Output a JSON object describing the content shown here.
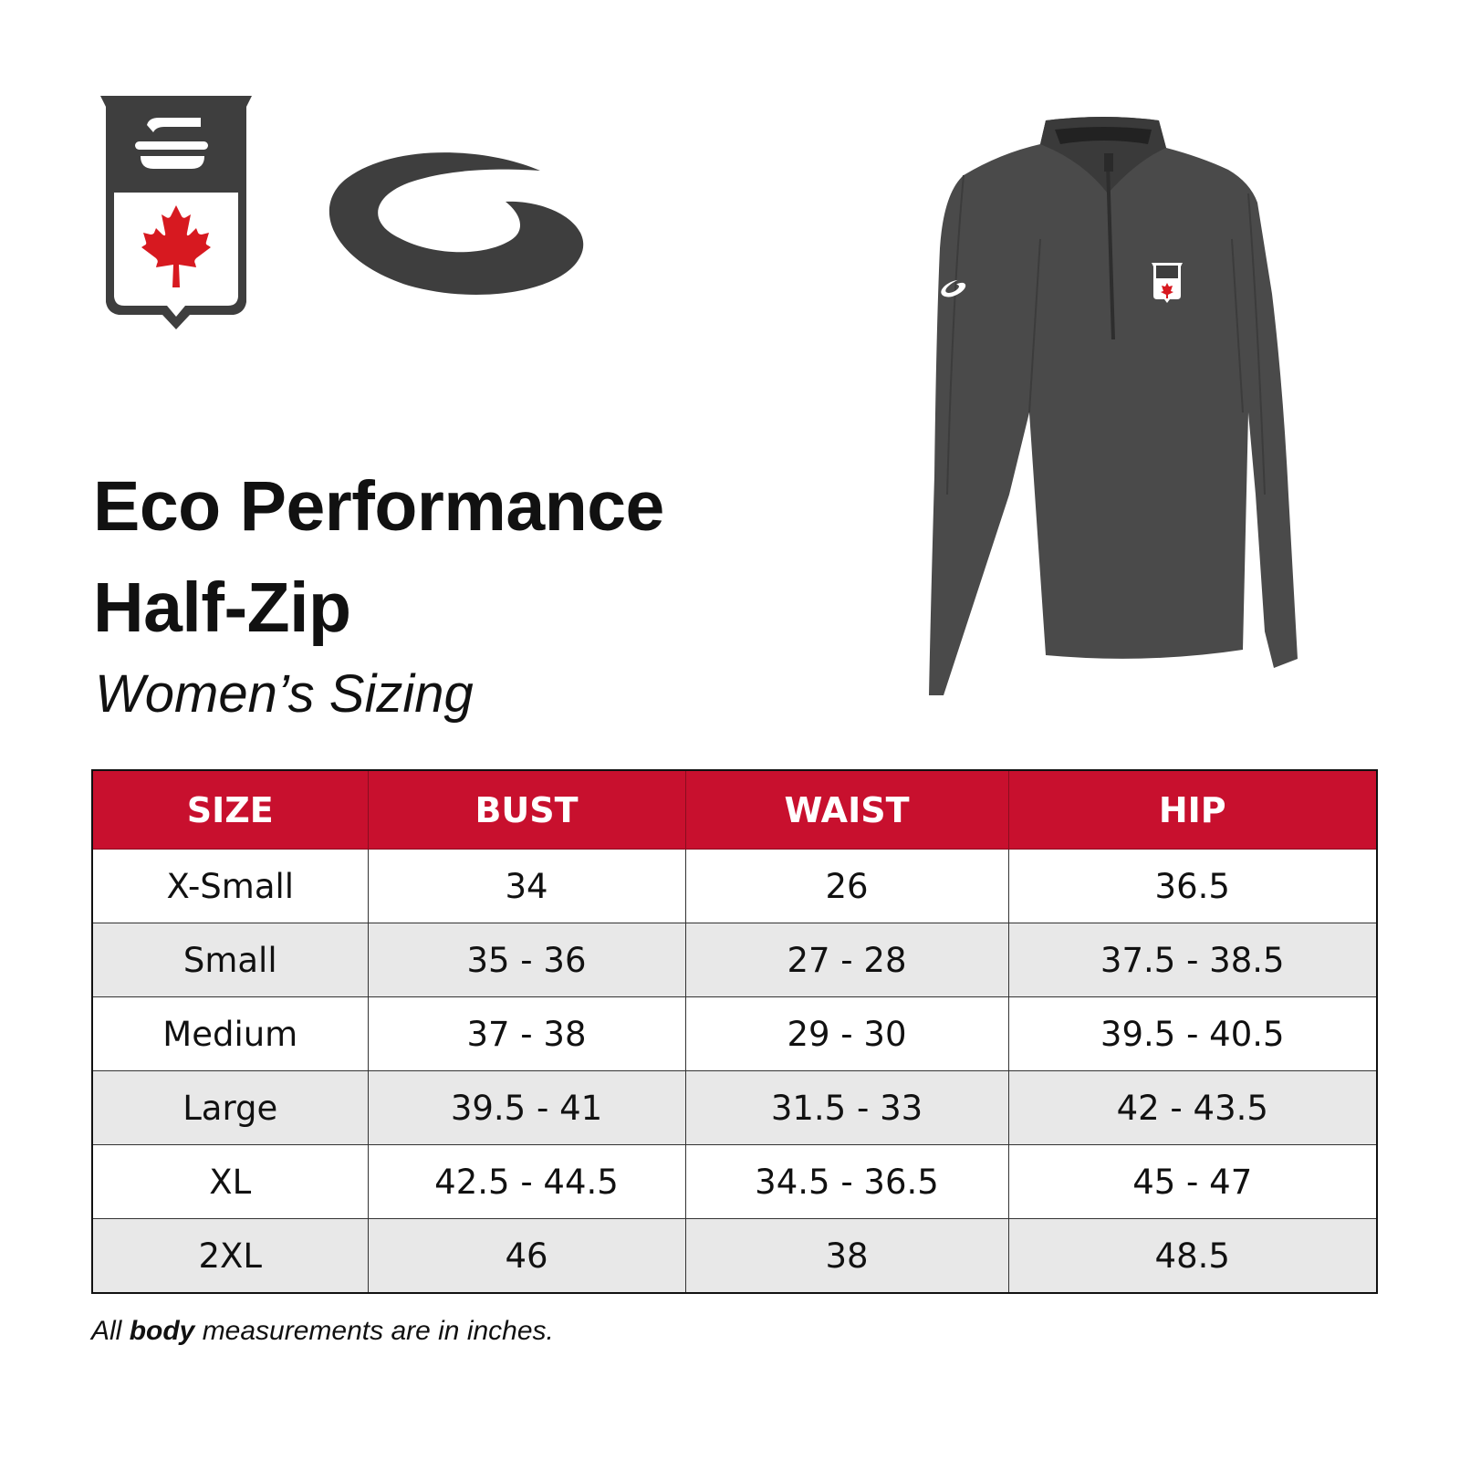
{
  "title": {
    "line1": "Eco Performance",
    "line2": "Half-Zip"
  },
  "subtitle": "Women’s Sizing",
  "colors": {
    "header_red": "#c8102e",
    "logo_dark": "#3e3e3e",
    "jacket_grey": "#4a4a4a",
    "alt_row": "#e8e8e8"
  },
  "table": {
    "headers": [
      "SIZE",
      "BUST",
      "WAIST",
      "HIP"
    ],
    "rows": [
      [
        "X-Small",
        "34",
        "26",
        "36.5"
      ],
      [
        "Small",
        "35 - 36",
        "27 - 28",
        "37.5 - 38.5"
      ],
      [
        "Medium",
        "37 - 38",
        "29 - 30",
        "39.5 - 40.5"
      ],
      [
        "Large",
        "39.5 - 41",
        "31.5 - 33",
        "42 - 43.5"
      ],
      [
        "XL",
        "42.5 - 44.5",
        "34.5 - 36.5",
        "45 - 47"
      ],
      [
        "2XL",
        "46",
        "38",
        "48.5"
      ]
    ]
  },
  "footnote": {
    "prefix": "All ",
    "bold": "body",
    "suffix": " measurements are in inches."
  }
}
